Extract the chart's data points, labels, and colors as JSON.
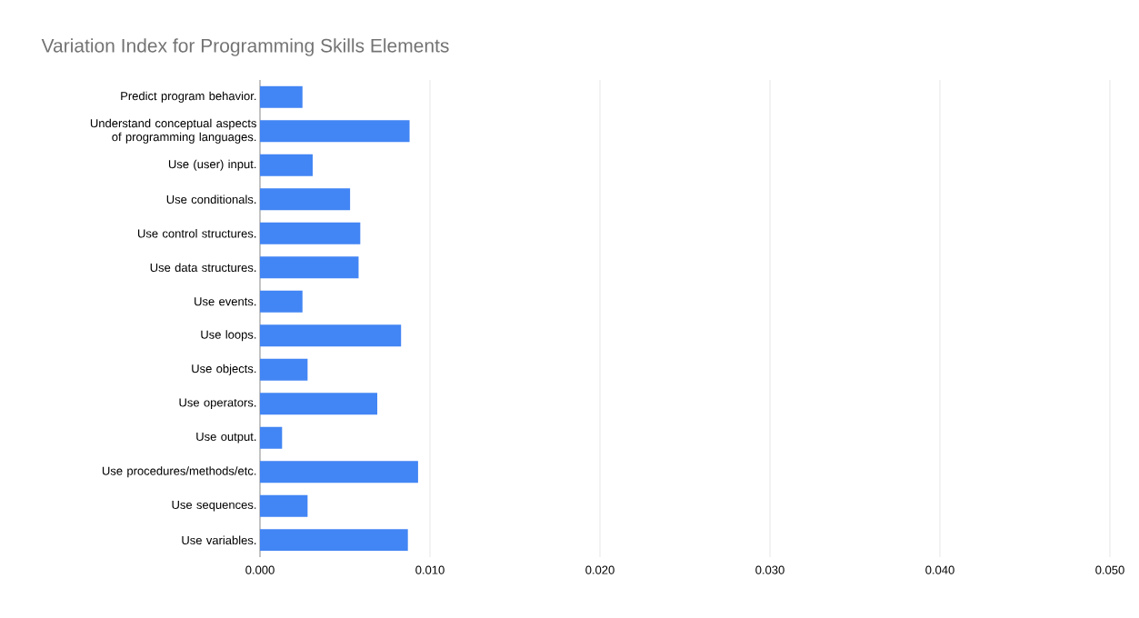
{
  "chart_data": {
    "type": "bar",
    "orientation": "horizontal",
    "title": "Variation Index for Programming Skills Elements",
    "categories": [
      "Predict program behavior.",
      "Understand conceptual aspects of programming languages.",
      "Use (user) input.",
      "Use conditionals.",
      "Use control structures.",
      "Use data structures.",
      "Use events.",
      "Use loops.",
      "Use objects.",
      "Use operators.",
      "Use output.",
      "Use procedures/methods/etc.",
      "Use sequences.",
      "Use variables."
    ],
    "values": [
      0.0025,
      0.0088,
      0.0031,
      0.0053,
      0.0059,
      0.0058,
      0.0025,
      0.0083,
      0.0028,
      0.0069,
      0.0013,
      0.0093,
      0.0028,
      0.0087
    ],
    "color": "#4285f4",
    "xlim": [
      0,
      0.05
    ],
    "xticks": [
      {
        "value": 0,
        "label": "0.000"
      },
      {
        "value": 0.01,
        "label": "0.010"
      },
      {
        "value": 0.02,
        "label": "0.020"
      },
      {
        "value": 0.03,
        "label": "0.030"
      },
      {
        "value": 0.04,
        "label": "0.040"
      },
      {
        "value": 0.05,
        "label": "0.050"
      }
    ],
    "grid": "x"
  }
}
